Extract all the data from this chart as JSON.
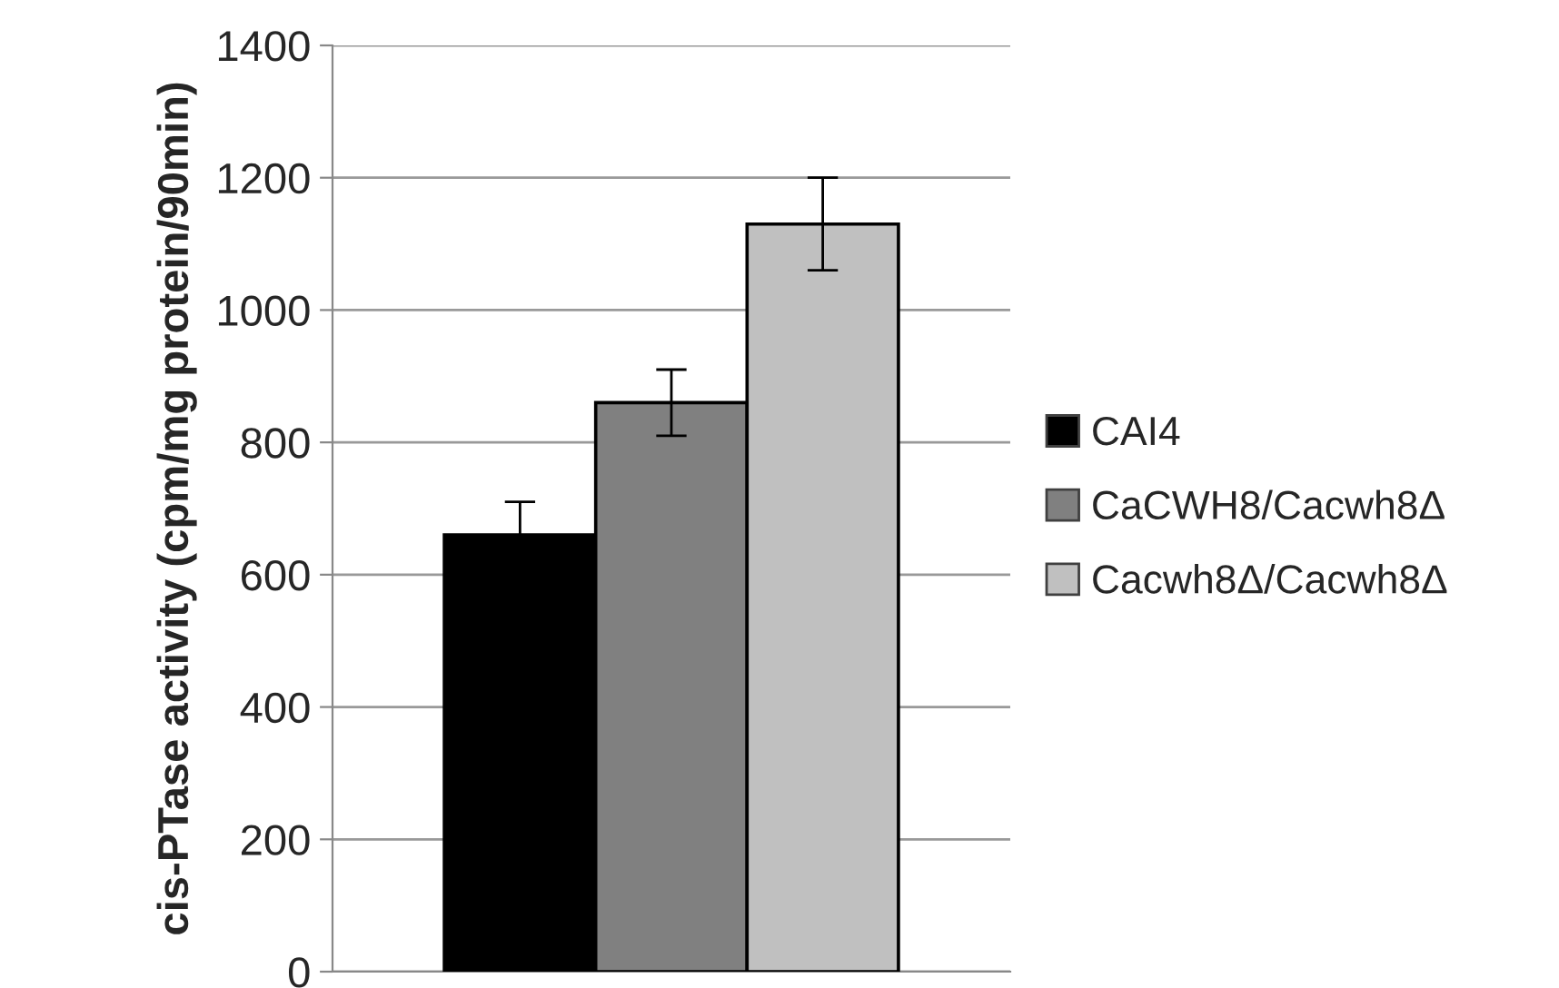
{
  "chart_data": {
    "type": "bar",
    "ylabel": "cis-PTase activity (cpm/mg protein/90min)",
    "categories": [
      null
    ],
    "series": [
      {
        "name": "CAI4",
        "color": "#000000",
        "values": [
          660
        ],
        "errors": [
          50
        ]
      },
      {
        "name": "CaCWH8/Cacwh8Δ",
        "color": "#808080",
        "values": [
          860
        ],
        "errors": [
          50
        ]
      },
      {
        "name": "Cacwh8Δ/Cacwh8Δ",
        "color": "#c0c0c0",
        "values": [
          1130
        ],
        "errors": [
          70
        ]
      }
    ],
    "ylim": [
      0,
      1400
    ],
    "yticks": [
      0,
      200,
      400,
      600,
      800,
      1000,
      1200,
      1400
    ],
    "grid": "y",
    "legend": "right"
  }
}
